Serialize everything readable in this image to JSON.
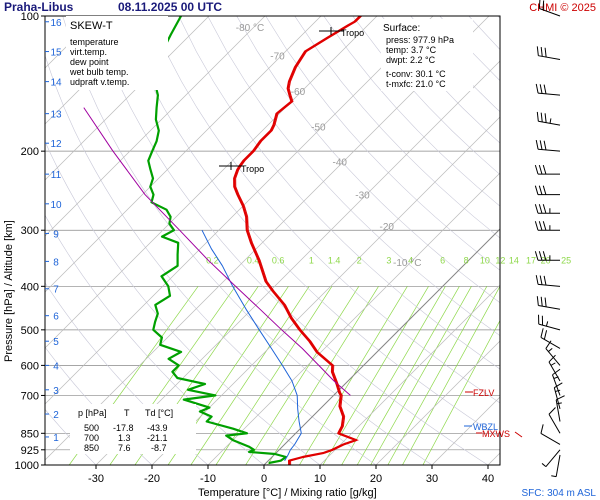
{
  "header": {
    "station": "Praha-Libus",
    "datetime": "08.11.2025 00 UTC",
    "copyright": "CHMI © 2025"
  },
  "colors": {
    "temperature": "#e00000",
    "virt_temp": "#e00000",
    "dew_point": "#00a000",
    "wet_bulb": "#1e64d8",
    "updraft": "#a000a0",
    "mixing": "#8ed84a",
    "isotherm": "#bbbbbb",
    "isobar": "#888888",
    "title": "#1a1a7a",
    "copyright": "#cc0000",
    "sfc": "#1e64d8"
  },
  "legend": {
    "title": "SKEW-T",
    "items": [
      {
        "label": "temperature",
        "color": "#e00000"
      },
      {
        "label": "virt.temp.",
        "color": "#e00000"
      },
      {
        "label": "dew point",
        "color": "#00a000"
      },
      {
        "label": "wet bulb temp.",
        "color": "#1e64d8"
      },
      {
        "label": "udpraft v.temp.",
        "color": "#a000a0"
      }
    ]
  },
  "surface_info": {
    "title": "Surface:",
    "lines": [
      {
        "text": "press: 977.9 hPa",
        "color": "#000000"
      },
      {
        "text": "temp: 3.7 °C",
        "color": "#e00000"
      },
      {
        "text": "dwpt: 2.2 °C",
        "color": "#00a000"
      },
      {
        "text": "t-conv: 30.1 °C",
        "color": "#000000"
      },
      {
        "text": "t-mxfc: 21.0 °C",
        "color": "#000000"
      }
    ]
  },
  "table": {
    "headers": [
      "p [hPa]",
      "T",
      "Td [°C]"
    ],
    "rows": [
      [
        "500",
        "-17.8",
        "-43.9"
      ],
      [
        "700",
        "1.3",
        "-21.1"
      ],
      [
        "850",
        "7.6",
        "-8.7"
      ]
    ]
  },
  "labels": {
    "tropo": "Tropo",
    "fzlv": "FZLV",
    "wbzl": "WBZL",
    "mxws": "MXWS",
    "sfc": "SFC: 304 m ASL"
  },
  "chart_data": {
    "type": "line",
    "title": "Praha-Libus   08.11.2025 00 UTC",
    "xlabel": "Temperature [°C]  /  Mixing ratio [g/kg]",
    "ylabel": "Pressure [hPa]  /  Altitude [km]",
    "y_scale": "log",
    "ylim": [
      1000,
      100
    ],
    "xlim_at_bottom": [
      -37,
      43
    ],
    "x_ticks": [
      -30,
      -20,
      -10,
      0,
      10,
      20,
      30,
      40
    ],
    "pressure_ticks": [
      100,
      200,
      300,
      400,
      500,
      600,
      700,
      850,
      925,
      1000
    ],
    "altitude_ticks_km": [
      1,
      2,
      3,
      4,
      5,
      6,
      7,
      8,
      9,
      10,
      11,
      12,
      13,
      14,
      15,
      16
    ],
    "altitude_tick_pressures": [
      866,
      770,
      680,
      600,
      530,
      465,
      405,
      352,
      305,
      262,
      225,
      192,
      165,
      140,
      120,
      103
    ],
    "isotherm_labels": [
      "-80 °C",
      "-70",
      "-60",
      "-50",
      "-40",
      "-30",
      "-20",
      "-10 °C"
    ],
    "isotherm_label_values": [
      -80,
      -70,
      -60,
      -50,
      -40,
      -30,
      -20,
      -10
    ],
    "mixing_ratio_labels": [
      "0.2",
      "0.4",
      "0.6",
      "1",
      "1.4",
      "2",
      "3",
      "4",
      "6",
      "8",
      "10",
      "12",
      "14",
      "17",
      "20",
      "25"
    ],
    "series": [
      {
        "name": "temperature",
        "points": [
          [
            1000,
            4.5
          ],
          [
            978,
            3.7
          ],
          [
            960,
            5.5
          ],
          [
            940,
            8.5
          ],
          [
            925,
            9.5
          ],
          [
            900,
            10.5
          ],
          [
            880,
            12.0
          ],
          [
            850,
            7.6
          ],
          [
            820,
            7.0
          ],
          [
            780,
            5.5
          ],
          [
            740,
            3.0
          ],
          [
            700,
            1.3
          ],
          [
            690,
            0.5
          ],
          [
            660,
            -1.5
          ],
          [
            620,
            -4.5
          ],
          [
            600,
            -5.6
          ],
          [
            560,
            -10.8
          ],
          [
            530,
            -14.0
          ],
          [
            500,
            -17.8
          ],
          [
            470,
            -21.5
          ],
          [
            440,
            -25.0
          ],
          [
            410,
            -29.5
          ],
          [
            390,
            -32.5
          ],
          [
            350,
            -37.5
          ],
          [
            320,
            -42.0
          ],
          [
            300,
            -45.0
          ],
          [
            280,
            -47.5
          ],
          [
            265,
            -50.0
          ],
          [
            250,
            -53.0
          ],
          [
            240,
            -55.0
          ],
          [
            230,
            -56.5
          ],
          [
            220,
            -57.5
          ],
          [
            215,
            -57.8
          ],
          [
            210,
            -58.0
          ],
          [
            200,
            -58.0
          ],
          [
            190,
            -58.5
          ],
          [
            180,
            -58.5
          ],
          [
            175,
            -59.0
          ],
          [
            165,
            -60.5
          ],
          [
            155,
            -60.0
          ],
          [
            150,
            -61.5
          ],
          [
            145,
            -63.0
          ],
          [
            140,
            -64.0
          ],
          [
            130,
            -65.5
          ],
          [
            120,
            -66.5
          ],
          [
            112,
            -65.0
          ],
          [
            105,
            -63.5
          ],
          [
            103,
            -63.0
          ],
          [
            100,
            -63.0
          ]
        ]
      },
      {
        "name": "dew point",
        "points": [
          [
            990,
            0.5
          ],
          [
            978,
            2.2
          ],
          [
            960,
            2.5
          ],
          [
            945,
            0.0
          ],
          [
            935,
            -5.0
          ],
          [
            925,
            -4.5
          ],
          [
            910,
            -6.0
          ],
          [
            880,
            -10.0
          ],
          [
            860,
            -12.0
          ],
          [
            850,
            -8.7
          ],
          [
            830,
            -12.0
          ],
          [
            800,
            -18.0
          ],
          [
            780,
            -18.0
          ],
          [
            760,
            -21.0
          ],
          [
            745,
            -20.0
          ],
          [
            730,
            -23.0
          ],
          [
            715,
            -26.0
          ],
          [
            700,
            -21.1
          ],
          [
            680,
            -27.0
          ],
          [
            660,
            -25.0
          ],
          [
            640,
            -31.0
          ],
          [
            620,
            -33.0
          ],
          [
            600,
            -33.0
          ],
          [
            580,
            -36.0
          ],
          [
            560,
            -35.0
          ],
          [
            540,
            -40.0
          ],
          [
            520,
            -41.0
          ],
          [
            500,
            -43.9
          ],
          [
            480,
            -45.0
          ],
          [
            460,
            -46.0
          ],
          [
            440,
            -48.0
          ],
          [
            420,
            -47.0
          ],
          [
            400,
            -49.0
          ],
          [
            380,
            -52.0
          ],
          [
            360,
            -51.0
          ],
          [
            340,
            -53.0
          ],
          [
            320,
            -55.0
          ],
          [
            310,
            -59.0
          ],
          [
            300,
            -58.0
          ],
          [
            290,
            -60.0
          ],
          [
            280,
            -61.0
          ],
          [
            270,
            -63.0
          ],
          [
            260,
            -67.0
          ],
          [
            250,
            -68.0
          ],
          [
            240,
            -70.0
          ],
          [
            230,
            -71.0
          ],
          [
            220,
            -73.0
          ],
          [
            210,
            -75.0
          ],
          [
            200,
            -76.0
          ],
          [
            190,
            -77.0
          ],
          [
            180,
            -78.5
          ],
          [
            170,
            -81.0
          ],
          [
            160,
            -83.0
          ],
          [
            150,
            -85.0
          ],
          [
            140,
            -88.0
          ],
          [
            130,
            -90.0
          ],
          [
            120,
            -92.0
          ],
          [
            110,
            -93.5
          ],
          [
            100,
            -95.0
          ]
        ]
      },
      {
        "name": "wet bulb temp.",
        "points": [
          [
            978,
            2.9
          ],
          [
            950,
            2.5
          ],
          [
            925,
            2.0
          ],
          [
            900,
            1.8
          ],
          [
            850,
            1.0
          ],
          [
            800,
            -1.5
          ],
          [
            750,
            -4.0
          ],
          [
            700,
            -6.5
          ],
          [
            650,
            -10.0
          ],
          [
            600,
            -14.5
          ],
          [
            550,
            -19.5
          ],
          [
            500,
            -25.0
          ],
          [
            450,
            -31.0
          ],
          [
            400,
            -37.5
          ],
          [
            360,
            -43.0
          ],
          [
            330,
            -48.0
          ],
          [
            300,
            -53.0
          ]
        ]
      },
      {
        "name": "udpraft v.temp.",
        "points": [
          [
            700,
            3.0
          ],
          [
            650,
            -2.5
          ],
          [
            600,
            -8.0
          ],
          [
            550,
            -14.0
          ],
          [
            500,
            -21.0
          ],
          [
            450,
            -28.5
          ],
          [
            400,
            -37.0
          ],
          [
            350,
            -46.5
          ],
          [
            300,
            -57.0
          ],
          [
            250,
            -69.5
          ],
          [
            200,
            -83.0
          ],
          [
            160,
            -96.0
          ]
        ]
      }
    ]
  },
  "wind_barbs": [
    {
      "p": 100,
      "dir": 290,
      "spd": 20
    },
    {
      "p": 125,
      "dir": 280,
      "spd": 30
    },
    {
      "p": 150,
      "dir": 275,
      "spd": 30
    },
    {
      "p": 175,
      "dir": 280,
      "spd": 35
    },
    {
      "p": 200,
      "dir": 275,
      "spd": 30
    },
    {
      "p": 225,
      "dir": 270,
      "spd": 30
    },
    {
      "p": 250,
      "dir": 270,
      "spd": 30
    },
    {
      "p": 275,
      "dir": 270,
      "spd": 35
    },
    {
      "p": 300,
      "dir": 270,
      "spd": 35
    },
    {
      "p": 350,
      "dir": 270,
      "spd": 35
    },
    {
      "p": 400,
      "dir": 275,
      "spd": 30
    },
    {
      "p": 450,
      "dir": 280,
      "spd": 30
    },
    {
      "p": 500,
      "dir": 285,
      "spd": 25
    },
    {
      "p": 550,
      "dir": 300,
      "spd": 20
    },
    {
      "p": 600,
      "dir": 320,
      "spd": 15
    },
    {
      "p": 650,
      "dir": 330,
      "spd": 15
    },
    {
      "p": 700,
      "dir": 340,
      "spd": 15
    },
    {
      "p": 750,
      "dir": 345,
      "spd": 15
    },
    {
      "p": 800,
      "dir": 350,
      "spd": 15
    },
    {
      "p": 850,
      "dir": 330,
      "spd": 10
    },
    {
      "p": 900,
      "dir": 300,
      "spd": 10
    },
    {
      "p": 925,
      "dir": 220,
      "spd": 5
    },
    {
      "p": 950,
      "dir": 190,
      "spd": 5
    }
  ]
}
